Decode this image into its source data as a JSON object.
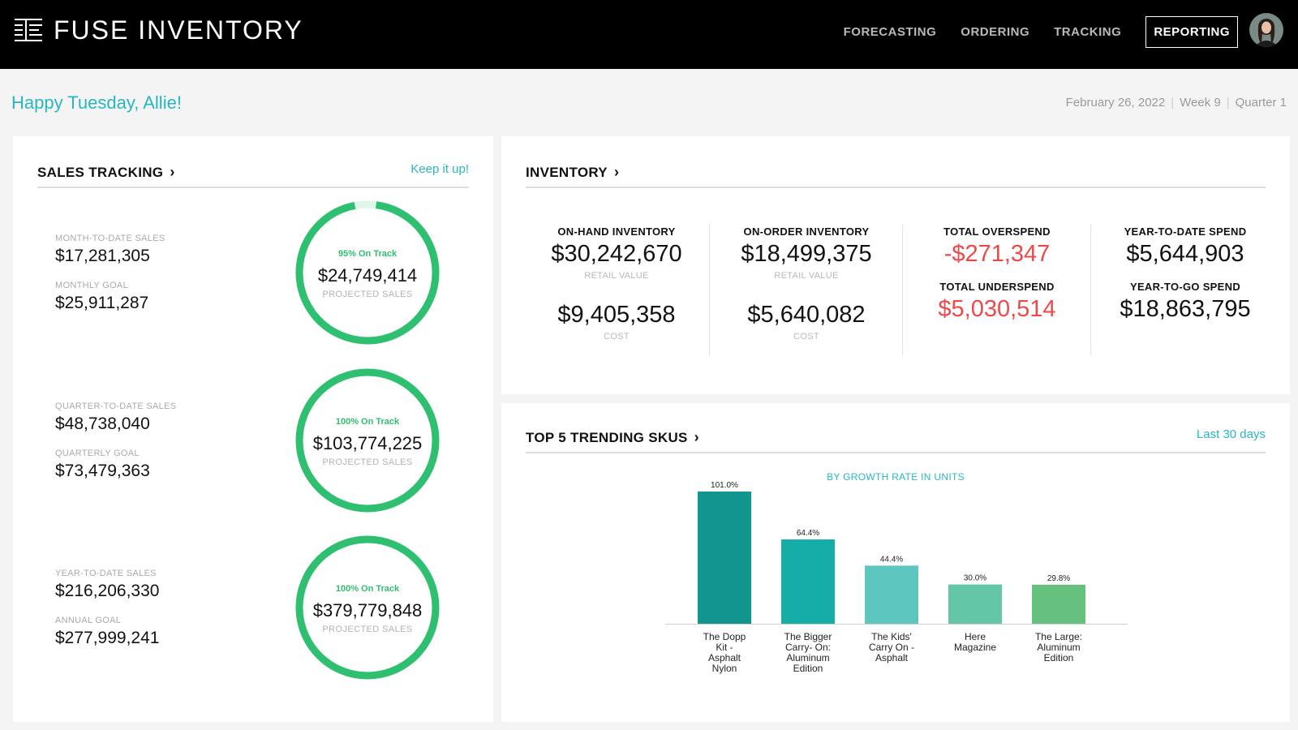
{
  "app": {
    "title": "FUSE INVENTORY",
    "nav": [
      "FORECASTING",
      "ORDERING",
      "TRACKING",
      "REPORTING"
    ],
    "active_nav": "REPORTING",
    "brand_color": "#29b6c2",
    "good_color": "#2fbf71",
    "bad_color": "#f04848",
    "logo_icon": "fuse-logo-icon",
    "avatar_icon": "user-avatar"
  },
  "greeting": "Happy Tuesday, Allie!",
  "dateline": {
    "date": "February 26, 2022",
    "week": "Week 9",
    "quarter": "Quarter 1"
  },
  "sales": {
    "title": "SALES TRACKING",
    "chevron": "›",
    "tagline": "Keep it up!",
    "rows": [
      {
        "sales_label": "MONTH-TO-DATE SALES",
        "sales_value": "$17,281,305",
        "goal_label": "MONTHLY GOAL",
        "goal_value": "$25,911,287",
        "status": "95% On Track",
        "progress": 0.95,
        "projected": "$24,749,414",
        "projected_label": "PROJECTED SALES"
      },
      {
        "sales_label": "QUARTER-TO-DATE SALES",
        "sales_value": "$48,738,040",
        "goal_label": "QUARTERLY GOAL",
        "goal_value": "$73,479,363",
        "status": "100% On Track",
        "progress": 1.0,
        "projected": "$103,774,225",
        "projected_label": "PROJECTED SALES"
      },
      {
        "sales_label": "YEAR-TO-DATE SALES",
        "sales_value": "$216,206,330",
        "goal_label": "ANNUAL GOAL",
        "goal_value": "$277,999,241",
        "status": "100% On Track",
        "progress": 1.0,
        "projected": "$379,779,848",
        "projected_label": "PROJECTED SALES"
      }
    ]
  },
  "inventory": {
    "title": "INVENTORY",
    "chevron": "›",
    "on_hand": {
      "label": "ON-HAND INVENTORY",
      "retail": "$30,242,670",
      "retail_label": "RETAIL VALUE",
      "cost": "$9,405,358",
      "cost_label": "COST"
    },
    "on_order": {
      "label": "ON-ORDER INVENTORY",
      "retail": "$18,499,375",
      "retail_label": "RETAIL VALUE",
      "cost": "$5,640,082",
      "cost_label": "COST"
    },
    "overspend": {
      "label": "TOTAL OVERSPEND",
      "value": "-$271,347"
    },
    "underspend": {
      "label": "TOTAL UNDERSPEND",
      "value": "$5,030,514"
    },
    "ytd_spend": {
      "label": "YEAR-TO-DATE SPEND",
      "value": "$5,644,903"
    },
    "ytg_spend": {
      "label": "YEAR-TO-GO SPEND",
      "value": "$18,863,795"
    }
  },
  "trending": {
    "title": "TOP 5 TRENDING SKUS",
    "chevron": "›",
    "period": "Last 30 days"
  },
  "chart_data": {
    "type": "bar",
    "title": "BY GROWTH RATE IN UNITS",
    "xlabel": "",
    "ylabel": "",
    "categories": [
      [
        "The Dopp",
        "Kit -",
        "Asphalt",
        "Nylon"
      ],
      [
        "The Bigger",
        "Carry- On:",
        "Aluminum",
        "Edition"
      ],
      [
        "The Kids'",
        "Carry On -",
        "Asphalt"
      ],
      [
        "Here",
        "Magazine"
      ],
      [
        "The Large:",
        "Aluminum",
        "Edition"
      ]
    ],
    "values": [
      101.0,
      64.4,
      44.4,
      30.0,
      29.8
    ],
    "value_labels": [
      "101.0%",
      "64.4%",
      "44.4%",
      "30.0%",
      "29.8%"
    ],
    "colors": [
      "#13958f",
      "#16ada6",
      "#5cc6bf",
      "#63c6a6",
      "#66c17e"
    ],
    "ylim": [
      0,
      101
    ],
    "grid": false,
    "legend": "none"
  }
}
